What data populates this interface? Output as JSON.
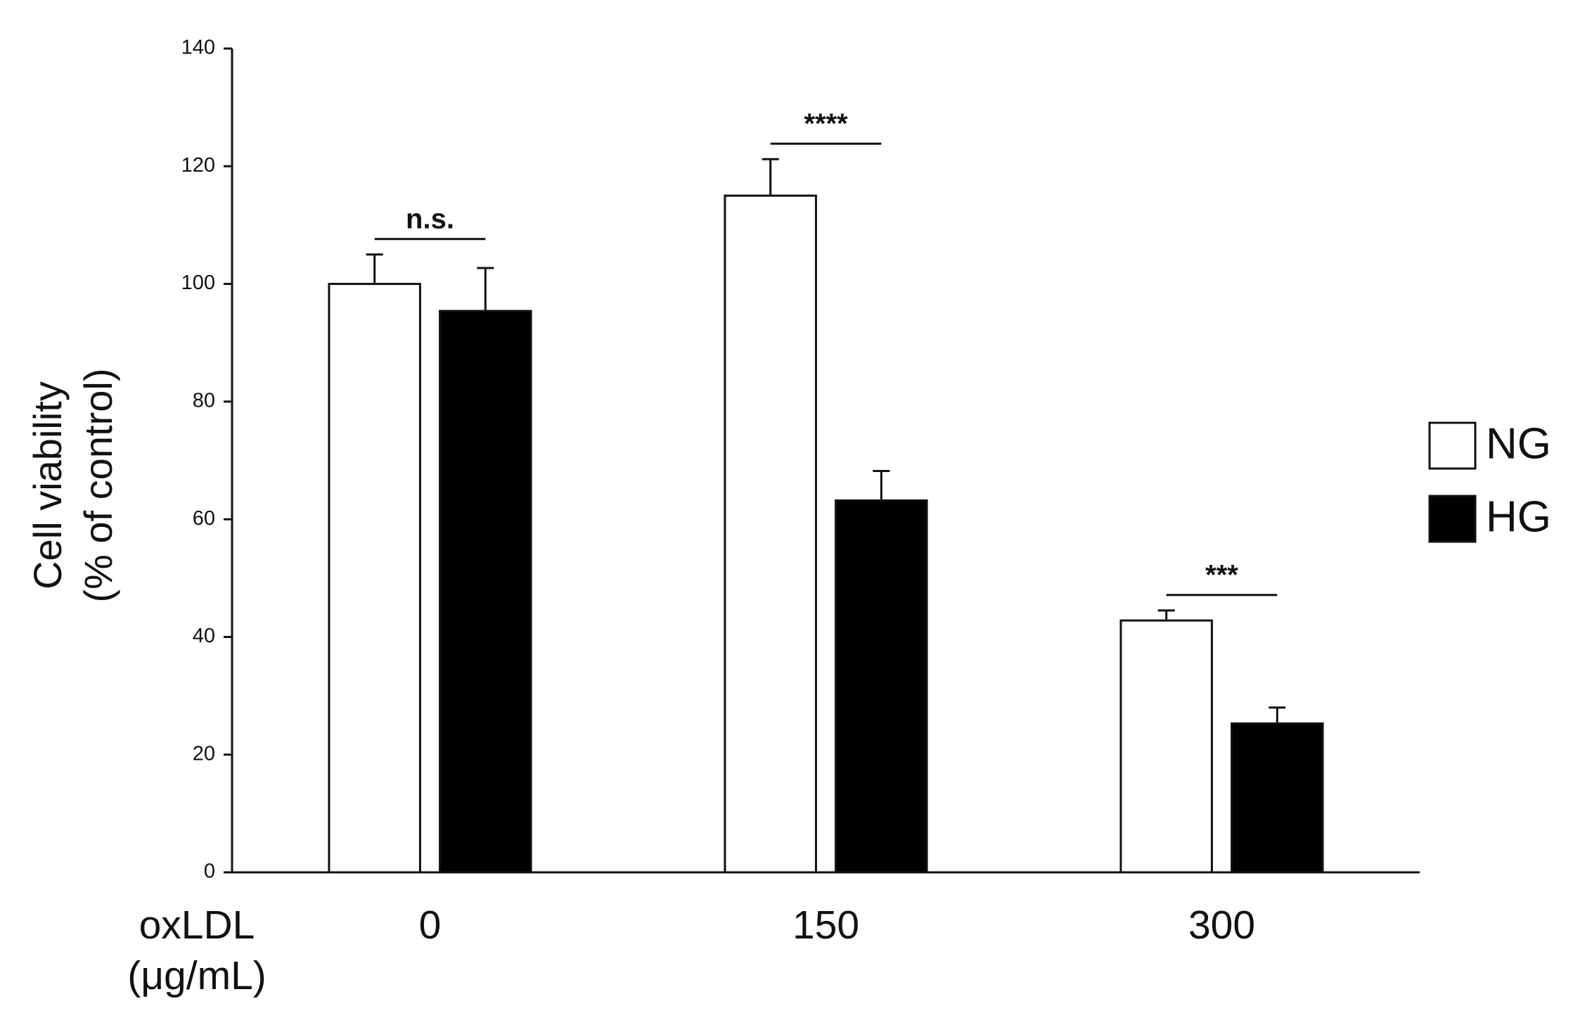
{
  "chart_data": {
    "type": "bar",
    "ylabel": [
      "Cell viability",
      "(% of control)"
    ],
    "xlabel": [
      "oxLDL",
      "(μg/mL)"
    ],
    "categories": [
      "0",
      "150",
      "300"
    ],
    "series": [
      {
        "name": "NG",
        "color": "#ffffff",
        "values": [
          100,
          115,
          42.8
        ],
        "errors": [
          5,
          6.2,
          1.7
        ]
      },
      {
        "name": "HG",
        "color": "#000000",
        "values": [
          95.4,
          63.2,
          25.3
        ],
        "errors": [
          7.3,
          5,
          2.7
        ]
      }
    ],
    "annotations": [
      {
        "text": "n.s.",
        "category": "0"
      },
      {
        "text": "****",
        "category": "150"
      },
      {
        "text": "***",
        "category": "300"
      }
    ],
    "ylim": [
      0,
      140
    ],
    "yticks": [
      0,
      20,
      40,
      60,
      80,
      100,
      120,
      140
    ],
    "legend": "right"
  }
}
